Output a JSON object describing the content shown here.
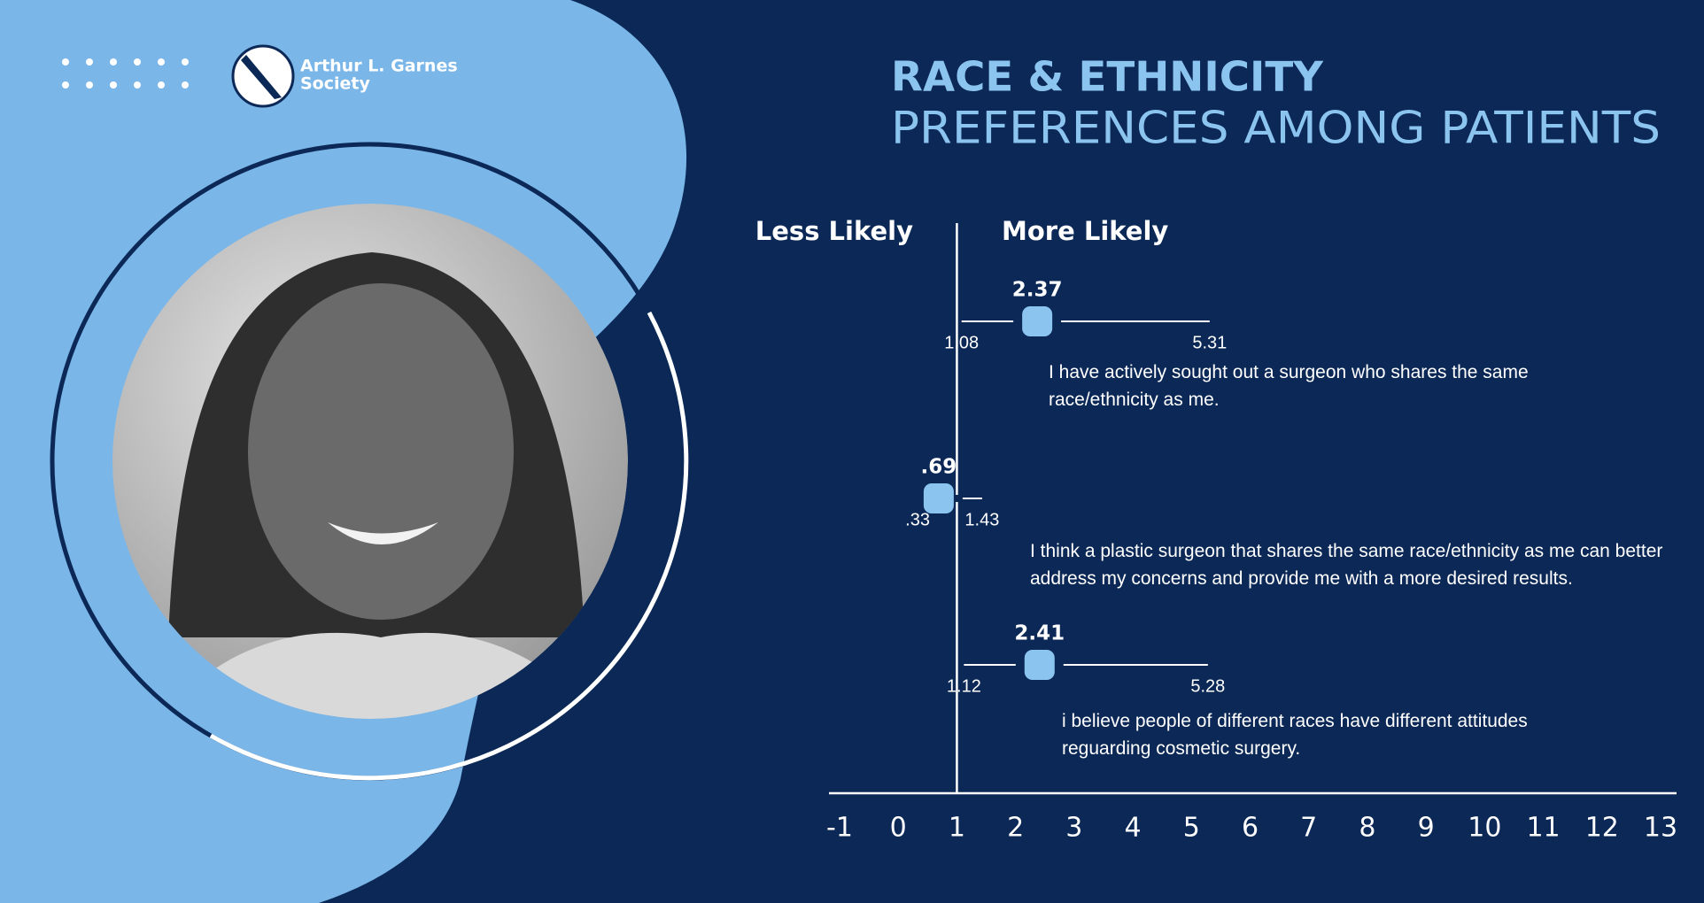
{
  "logo": {
    "line1": "Arthur L. Garnes",
    "line2": "Society"
  },
  "chart_data": {
    "type": "forest",
    "title": "RACE & ETHNICITY",
    "subtitle": "PREFERENCES AMONG PATIENTS",
    "left_label": "Less Likely",
    "right_label": "More Likely",
    "reference_line": 1,
    "categories": [
      "I have actively sought out a surgeon who shares the same race/ethnicity as me.",
      "I think a plastic surgeon that shares the same race/ethnicity as me can better address my concerns and provide me with a more desired results.",
      "i believe people of different races have different attitudes reguarding cosmetic surgery."
    ],
    "series": [
      {
        "color": "#8cc4f0",
        "values": [
          2.37,
          0.69,
          2.41
        ],
        "value_labels": [
          "2.37",
          ".69",
          "2.41"
        ],
        "lower": [
          1.08,
          0.33,
          1.12
        ],
        "lower_labels": [
          "1.08",
          ".33",
          "1.12"
        ],
        "upper": [
          5.31,
          1.43,
          5.28
        ]
      }
    ],
    "xlim": [
      -1,
      13
    ],
    "xticks": [
      -1,
      0,
      1,
      2,
      3,
      4,
      5,
      6,
      7,
      8,
      9,
      10,
      11,
      12,
      13
    ]
  }
}
